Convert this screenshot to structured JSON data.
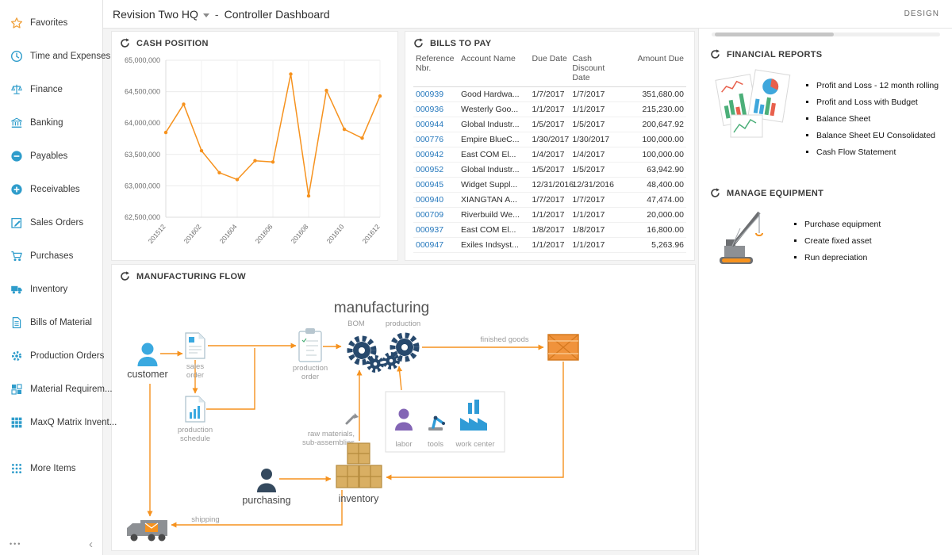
{
  "header": {
    "company": "Revision Two HQ",
    "separator": "-",
    "page": "Controller Dashboard",
    "design": "DESIGN"
  },
  "sidebar": {
    "items": [
      {
        "label": "Favorites",
        "icon": "star"
      },
      {
        "label": "Time and Expenses",
        "icon": "clock"
      },
      {
        "label": "Finance",
        "icon": "scales"
      },
      {
        "label": "Banking",
        "icon": "bank"
      },
      {
        "label": "Payables",
        "icon": "minus-circle"
      },
      {
        "label": "Receivables",
        "icon": "plus-circle"
      },
      {
        "label": "Sales Orders",
        "icon": "pencil-square"
      },
      {
        "label": "Purchases",
        "icon": "cart"
      },
      {
        "label": "Inventory",
        "icon": "truck"
      },
      {
        "label": "Bills of Material",
        "icon": "document"
      },
      {
        "label": "Production Orders",
        "icon": "gear"
      },
      {
        "label": "Material Requirem...",
        "icon": "squares"
      },
      {
        "label": "MaxQ Matrix Invent...",
        "icon": "grid"
      },
      {
        "label": "More Items",
        "icon": "dots-grid",
        "gap_before": true
      }
    ],
    "footer": {
      "more": "•••",
      "collapse": "‹"
    }
  },
  "panels": {
    "cash_position": {
      "title": "CASH POSITION"
    },
    "bills": {
      "title": "BILLS TO PAY",
      "columns": [
        "Reference Nbr.",
        "Account Name",
        "Due Date",
        "Cash Discount Date",
        "Amount Due"
      ],
      "rows": [
        [
          "000939",
          "Good Hardwa...",
          "1/7/2017",
          "1/7/2017",
          "351,680.00"
        ],
        [
          "000936",
          "Westerly Goo...",
          "1/1/2017",
          "1/1/2017",
          "215,230.00"
        ],
        [
          "000944",
          "Global Industr...",
          "1/5/2017",
          "1/5/2017",
          "200,647.92"
        ],
        [
          "000776",
          "Empire BlueC...",
          "1/30/2017",
          "1/30/2017",
          "100,000.00"
        ],
        [
          "000942",
          "East COM El...",
          "1/4/2017",
          "1/4/2017",
          "100,000.00"
        ],
        [
          "000952",
          "Global Industr...",
          "1/5/2017",
          "1/5/2017",
          "63,942.90"
        ],
        [
          "000945",
          "Widget Suppl...",
          "12/31/2016",
          "12/31/2016",
          "48,400.00"
        ],
        [
          "000940",
          "XIANGTAN A...",
          "1/7/2017",
          "1/7/2017",
          "47,474.00"
        ],
        [
          "000709",
          "Riverbuild We...",
          "1/1/2017",
          "1/1/2017",
          "20,000.00"
        ],
        [
          "000937",
          "East COM El...",
          "1/8/2017",
          "1/8/2017",
          "16,800.00"
        ],
        [
          "000947",
          "Exiles Indsyst...",
          "1/1/2017",
          "1/1/2017",
          "5,263.96"
        ]
      ]
    },
    "financial_reports": {
      "title": "FINANCIAL REPORTS",
      "items": [
        "Profit and Loss - 12 month rolling",
        "Profit and Loss with Budget",
        "Balance Sheet",
        "Balance Sheet EU Consolidated",
        "Cash Flow Statement"
      ]
    },
    "manage_equipment": {
      "title": "MANAGE EQUIPMENT",
      "items": [
        "Purchase equipment",
        "Create fixed asset",
        "Run depreciation"
      ]
    },
    "manufacturing": {
      "title": "MANUFACTURING FLOW"
    }
  },
  "chart_data": {
    "type": "line",
    "title": "CASH POSITION",
    "x": [
      "201512",
      "201601",
      "201602",
      "201603",
      "201604",
      "201605",
      "201606",
      "201607",
      "201608",
      "201609",
      "201610",
      "201611",
      "201612"
    ],
    "xtick_labels": [
      "201512",
      "201602",
      "201604",
      "201606",
      "201608",
      "201610",
      "201612"
    ],
    "values": [
      63850000,
      64300000,
      63560000,
      63210000,
      63100000,
      63400000,
      63380000,
      64780000,
      62840000,
      64520000,
      63900000,
      63760000,
      64430000
    ],
    "ylim": [
      62500000,
      65000000
    ],
    "yticks": [
      62500000,
      63000000,
      63500000,
      64000000,
      64500000,
      65000000
    ],
    "line_color": "#f6921e",
    "grid": true,
    "legend": "none"
  },
  "flow": {
    "title": "manufacturing",
    "bom": "BOM",
    "production": "production",
    "customer": "customer",
    "sales_order": [
      "sales",
      "order"
    ],
    "production_order": [
      "production",
      "order"
    ],
    "production_schedule": [
      "production",
      "schedule"
    ],
    "finished_goods": "finished goods",
    "raw_materials": [
      "raw materials,",
      "sub-assemblies"
    ],
    "labor": "labor",
    "tools": "tools",
    "work_center": "work center",
    "purchasing": "purchasing",
    "inventory": "inventory",
    "shipping": "shipping"
  },
  "colors": {
    "accent_orange": "#f6921e",
    "link_blue": "#2779bd",
    "icon_blue": "#2e9ccb",
    "gear_navy": "#27496d"
  }
}
